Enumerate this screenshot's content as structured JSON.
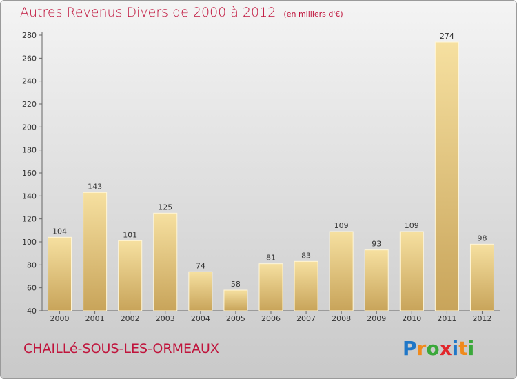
{
  "header": {
    "title": "Autres Revenus Divers de 2000 à 2012",
    "unit": "(en milliers d'€)"
  },
  "footer": {
    "commune": "CHAILLé-SOUS-LES-ORMEAUX",
    "logo_text": "Proxiti"
  },
  "colors": {
    "title": "#c0143c",
    "bar_light": "#f6e0a0",
    "bar_dark": "#c8a45a"
  },
  "chart_data": {
    "type": "bar",
    "title": "Autres Revenus Divers de 2000 à 2012",
    "xlabel": "",
    "ylabel": "",
    "categories": [
      "2000",
      "2001",
      "2002",
      "2003",
      "2004",
      "2005",
      "2006",
      "2007",
      "2008",
      "2009",
      "2010",
      "2011",
      "2012"
    ],
    "values": [
      104,
      143,
      101,
      125,
      74,
      58,
      81,
      83,
      109,
      93,
      109,
      274,
      98
    ],
    "ylim": [
      40,
      280
    ],
    "yticks": [
      40,
      60,
      80,
      100,
      120,
      140,
      160,
      180,
      200,
      220,
      240,
      260,
      280
    ],
    "grid": false,
    "legend": "none"
  }
}
